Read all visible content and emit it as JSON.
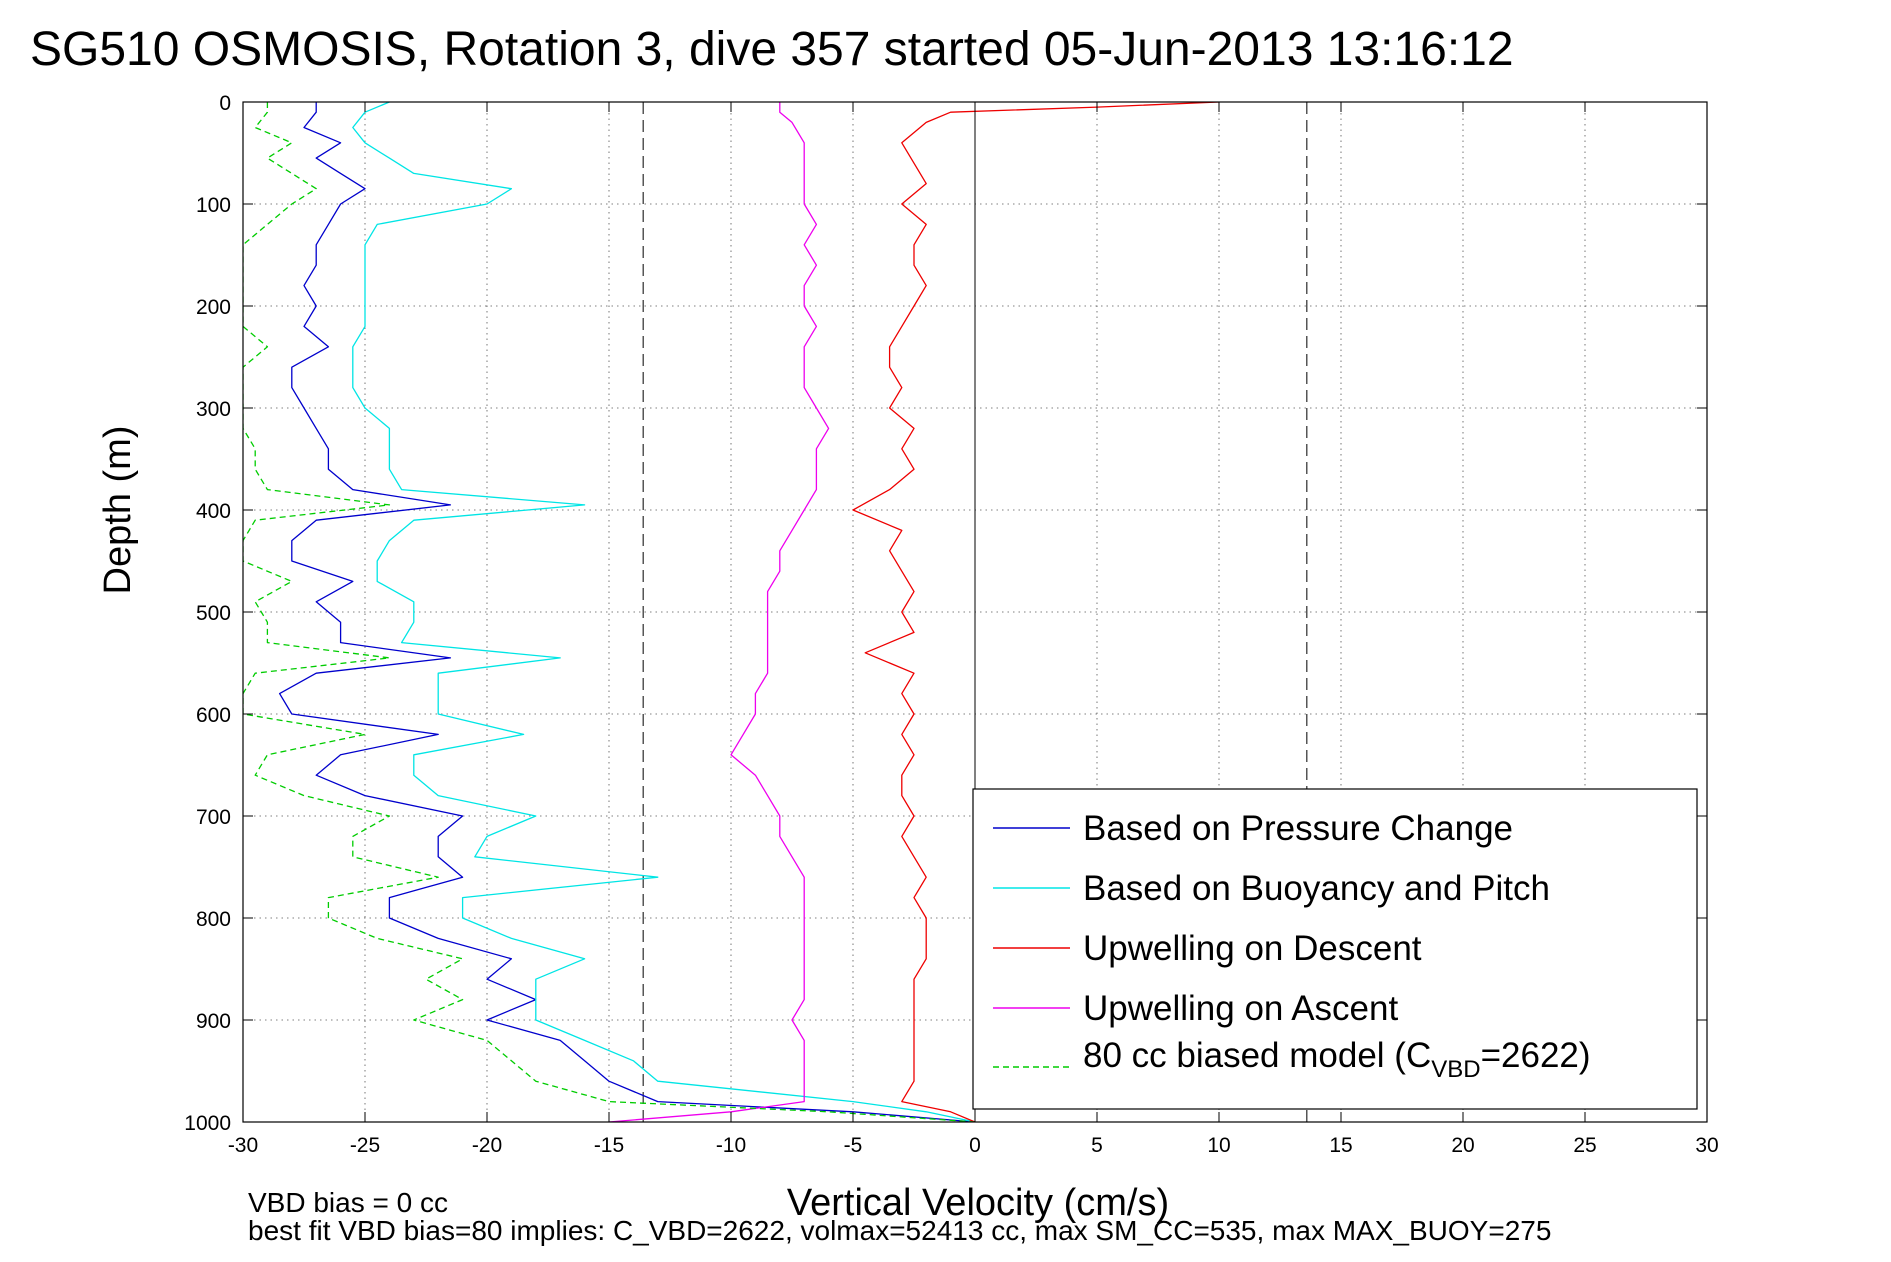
{
  "chart_data": {
    "type": "line",
    "title": "SG510 OSMOSIS, Rotation 3, dive 357 started 05-Jun-2013 13:16:12",
    "xlabel": "Vertical Velocity (cm/s)",
    "ylabel": "Depth (m)",
    "xlim": [
      -30,
      30
    ],
    "ylim": [
      0,
      1000
    ],
    "y_reversed": true,
    "grid": true,
    "x_ticks": [
      -30,
      -25,
      -20,
      -15,
      -10,
      -5,
      0,
      5,
      10,
      15,
      20,
      25,
      30
    ],
    "y_ticks": [
      0,
      100,
      200,
      300,
      400,
      500,
      600,
      700,
      800,
      900,
      1000
    ],
    "x_tick_labels": [
      "-30",
      "-25",
      "-20",
      "-15",
      "-10",
      "-5",
      "0",
      "5",
      "10",
      "15",
      "20",
      "25",
      "30"
    ],
    "y_tick_labels": [
      "0",
      "100",
      "200",
      "300",
      "400",
      "500",
      "600",
      "700",
      "800",
      "900",
      "1000"
    ],
    "vertical_lines": [
      {
        "x": 0,
        "style": "solid"
      },
      {
        "x": -13.6,
        "style": "dashed"
      },
      {
        "x": 13.6,
        "style": "dashed"
      }
    ],
    "legend_position": "lower-right",
    "series": [
      {
        "name": "Based on Pressure Change",
        "color": "#0000cc",
        "style": "solid",
        "depth": [
          0,
          10,
          25,
          40,
          55,
          70,
          85,
          100,
          120,
          140,
          160,
          180,
          200,
          220,
          240,
          260,
          280,
          300,
          320,
          340,
          360,
          380,
          395,
          410,
          430,
          450,
          470,
          490,
          510,
          530,
          545,
          560,
          580,
          600,
          620,
          640,
          660,
          680,
          700,
          720,
          740,
          760,
          780,
          800,
          820,
          840,
          860,
          880,
          900,
          920,
          940,
          960,
          980,
          990,
          1000
        ],
        "values": [
          -27,
          -27,
          -27.5,
          -26,
          -27,
          -26,
          -25,
          -26,
          -26.5,
          -27,
          -27,
          -27.5,
          -27,
          -27.5,
          -26.5,
          -28,
          -28,
          -27.5,
          -27,
          -26.5,
          -26.5,
          -25.5,
          -21.5,
          -27,
          -28,
          -28,
          -25.5,
          -27,
          -26,
          -26,
          -21.5,
          -27,
          -28.5,
          -28,
          -22,
          -26,
          -27,
          -25,
          -21,
          -22,
          -22,
          -21,
          -24,
          -24,
          -22,
          -19,
          -20,
          -18,
          -20,
          -17,
          -16,
          -15,
          -13,
          -5,
          0
        ]
      },
      {
        "name": "Based on Buoyancy and Pitch",
        "color": "#00e5e5",
        "style": "solid",
        "depth": [
          0,
          10,
          25,
          40,
          55,
          70,
          85,
          100,
          120,
          140,
          160,
          180,
          200,
          220,
          240,
          260,
          280,
          300,
          320,
          340,
          360,
          380,
          395,
          410,
          430,
          450,
          470,
          490,
          510,
          530,
          545,
          560,
          580,
          600,
          620,
          640,
          660,
          680,
          700,
          720,
          740,
          760,
          780,
          800,
          820,
          840,
          860,
          880,
          900,
          920,
          940,
          960,
          980,
          990,
          1000
        ],
        "values": [
          -24,
          -25,
          -25.5,
          -25,
          -24,
          -23,
          -19,
          -20,
          -24.5,
          -25,
          -25,
          -25,
          -25,
          -25,
          -25.5,
          -25.5,
          -25.5,
          -25,
          -24,
          -24,
          -24,
          -23.5,
          -16,
          -23,
          -24,
          -24.5,
          -24.5,
          -23,
          -23,
          -23.5,
          -17,
          -22,
          -22,
          -22,
          -18.5,
          -23,
          -23,
          -22,
          -18,
          -20,
          -20.5,
          -13,
          -21,
          -21,
          -19,
          -16,
          -18,
          -18,
          -18,
          -16,
          -14,
          -13,
          -5,
          -2,
          0
        ]
      },
      {
        "name": "Upwelling on Descent",
        "color": "#ee0000",
        "style": "solid",
        "depth": [
          0,
          5,
          10,
          20,
          40,
          60,
          80,
          100,
          120,
          140,
          160,
          180,
          200,
          220,
          240,
          260,
          280,
          300,
          320,
          340,
          360,
          380,
          400,
          420,
          440,
          460,
          480,
          500,
          520,
          540,
          560,
          580,
          600,
          620,
          640,
          660,
          680,
          700,
          720,
          740,
          760,
          780,
          800,
          820,
          840,
          860,
          880,
          900,
          920,
          940,
          960,
          980,
          990,
          1000
        ],
        "values": [
          10,
          5,
          -1,
          -2,
          -3,
          -2.5,
          -2,
          -3,
          -2,
          -2.5,
          -2.5,
          -2,
          -2.5,
          -3,
          -3.5,
          -3.5,
          -3,
          -3.5,
          -2.5,
          -3,
          -2.5,
          -3.5,
          -5,
          -3,
          -3.5,
          -3,
          -2.5,
          -3,
          -2.5,
          -4.5,
          -2.5,
          -3,
          -2.5,
          -3,
          -2.5,
          -3,
          -3,
          -2.5,
          -3,
          -2.5,
          -2,
          -2.5,
          -2,
          -2,
          -2,
          -2.5,
          -2.5,
          -2.5,
          -2.5,
          -2.5,
          -2.5,
          -3,
          -1,
          0
        ]
      },
      {
        "name": "Upwelling on Ascent",
        "color": "#ee00ee",
        "style": "solid",
        "depth": [
          0,
          10,
          20,
          40,
          60,
          80,
          100,
          120,
          140,
          160,
          180,
          200,
          220,
          240,
          260,
          280,
          300,
          320,
          340,
          360,
          380,
          400,
          420,
          440,
          460,
          480,
          500,
          520,
          540,
          560,
          580,
          600,
          620,
          640,
          660,
          680,
          700,
          720,
          740,
          760,
          780,
          800,
          820,
          840,
          860,
          880,
          900,
          920,
          940,
          960,
          980,
          990,
          1000
        ],
        "values": [
          -8,
          -8,
          -7.5,
          -7,
          -7,
          -7,
          -7,
          -6.5,
          -7,
          -6.5,
          -7,
          -7,
          -6.5,
          -7,
          -7,
          -7,
          -6.5,
          -6,
          -6.5,
          -6.5,
          -6.5,
          -7,
          -7.5,
          -8,
          -8,
          -8.5,
          -8.5,
          -8.5,
          -8.5,
          -8.5,
          -9,
          -9,
          -9.5,
          -10,
          -9,
          -8.5,
          -8,
          -8,
          -7.5,
          -7,
          -7,
          -7,
          -7,
          -7,
          -7,
          -7,
          -7.5,
          -7,
          -7,
          -7,
          -7,
          -10,
          -15
        ]
      },
      {
        "name": "80 cc biased model (C_VBD=2622)",
        "color": "#00cc00",
        "style": "dashed",
        "depth": [
          0,
          10,
          25,
          40,
          55,
          70,
          85,
          100,
          120,
          140,
          160,
          180,
          200,
          220,
          240,
          260,
          280,
          300,
          320,
          340,
          360,
          380,
          395,
          410,
          430,
          450,
          470,
          490,
          510,
          530,
          545,
          560,
          580,
          600,
          620,
          640,
          660,
          680,
          700,
          720,
          740,
          760,
          780,
          800,
          820,
          840,
          860,
          880,
          900,
          920,
          940,
          960,
          980,
          990,
          1000
        ],
        "values": [
          -29,
          -29,
          -29.5,
          -28,
          -29,
          -28,
          -27,
          -28,
          -29,
          -30,
          -30,
          -30,
          -30,
          -30,
          -29,
          -30,
          -30,
          -30,
          -30,
          -29.5,
          -29.5,
          -29,
          -24,
          -29.5,
          -30,
          -30,
          -28,
          -29.5,
          -29,
          -29,
          -24,
          -29.5,
          -30,
          -30,
          -25,
          -29,
          -29.5,
          -27.5,
          -24,
          -25.5,
          -25.5,
          -22,
          -26.5,
          -26.5,
          -24.5,
          -21,
          -22.5,
          -21,
          -23,
          -20,
          -19,
          -18,
          -15,
          -6,
          0
        ]
      }
    ]
  },
  "legend": {
    "items": [
      {
        "label": "Based on Pressure Change",
        "color": "#0000cc",
        "style": "solid"
      },
      {
        "label": "Based on Buoyancy and Pitch",
        "color": "#00e5e5",
        "style": "solid"
      },
      {
        "label": "Upwelling on Descent",
        "color": "#ee0000",
        "style": "solid"
      },
      {
        "label": "Upwelling on Ascent",
        "color": "#ee00ee",
        "style": "solid"
      }
    ],
    "model_item": {
      "prefix": "80 cc biased model (C",
      "subscript": "VBD",
      "suffix": "=2622)",
      "color": "#00cc00",
      "style": "dashed"
    }
  },
  "footer": {
    "line1": "VBD bias = 0 cc",
    "line2": "best fit VBD bias=80 implies: C_VBD=2622, volmax=52413 cc, max SM_CC=535, max MAX_BUOY=275"
  }
}
